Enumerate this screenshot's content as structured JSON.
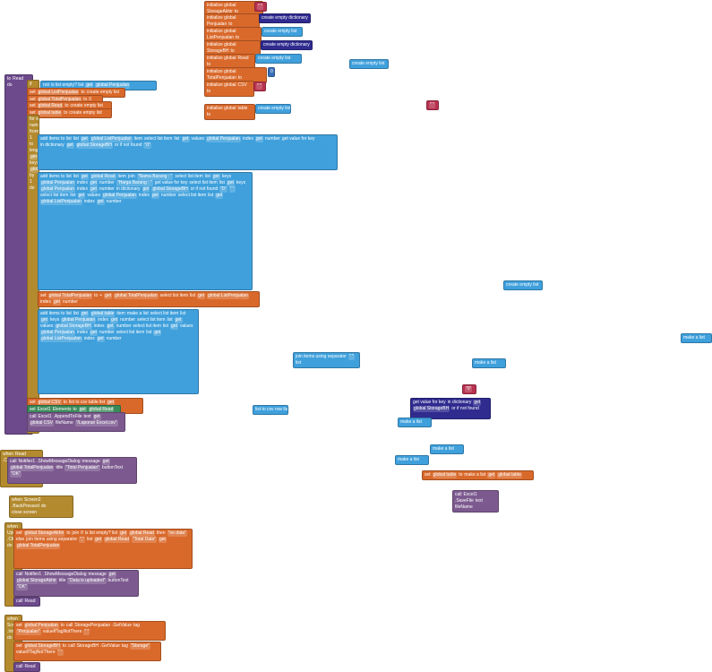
{
  "blocks": [
    {
      "texts": [
        "to",
        "Read",
        "do"
      ]
    },
    {
      "texts": [
        "if",
        "then"
      ]
    },
    {
      "texts": [
        "not",
        "is list empty? list",
        "get",
        "global Penjualan"
      ]
    },
    {
      "texts": [
        "set",
        "global ListPenjualan",
        "to",
        "create empty list"
      ]
    },
    {
      "texts": [
        "set",
        "global TotalPenjualan",
        "to",
        "0"
      ]
    },
    {
      "texts": [
        "set",
        "global Read",
        "to",
        "create empty list"
      ]
    },
    {
      "texts": [
        "set",
        "global table",
        "to",
        "create empty list"
      ]
    },
    {
      "texts": [
        "for each",
        "number",
        "from",
        "1",
        "to",
        "length of list list",
        "get",
        "keys",
        "global Penjualan",
        "by",
        "1",
        "do"
      ]
    },
    {
      "texts": [
        "add items to list",
        "list",
        "get",
        "global ListPenjualan",
        "item",
        "select list item",
        "list",
        "get",
        "values",
        "global Penjualan",
        "index",
        "get",
        "number",
        "get value for key",
        "in dictionary",
        "get",
        "global StorageBH",
        "or if not found",
        "\"0\""
      ]
    },
    {
      "texts": [
        "add items to list",
        "list",
        "get",
        "global Read",
        "item",
        "join",
        "\"Nama Barang : \"",
        "select list item",
        "list",
        "get",
        "keys",
        "global Penjualan",
        "index",
        "get",
        "number",
        "\"Harga Barang : \"",
        "get value for key",
        "select list item",
        "list",
        "get",
        "keys",
        "global Penjualan",
        "index",
        "get",
        "number",
        "in dictionary",
        "get",
        "global StorageBH",
        "or if not found",
        "\"0\"",
        "\" \"",
        "select list item",
        "list",
        "get",
        "values",
        "global Penjualan",
        "index",
        "get",
        "number",
        "select list item",
        "list",
        "get",
        "global ListPenjualan",
        "index",
        "get",
        "number"
      ]
    },
    {
      "texts": [
        "set",
        "global TotalPenjualan",
        "to",
        "+",
        "get",
        "global TotalPenjualan",
        "select list item",
        "list",
        "get",
        "global ListPenjualan",
        "index",
        "get",
        "number"
      ]
    },
    {
      "texts": [
        "add items to list",
        "list",
        "get",
        "global table",
        "item",
        "make a list",
        "select list item",
        "list",
        "get",
        "keys",
        "global Penjualan",
        "index",
        "get",
        "number",
        "select list item",
        "list",
        "get",
        "values",
        "global StorageBH",
        "index",
        "get",
        "number",
        "select list item",
        "list",
        "get",
        "values",
        "global Penjualan",
        "index",
        "get",
        "number",
        "select list item",
        "list",
        "get",
        "global ListPenjualan",
        "index",
        "get",
        "number"
      ]
    },
    {
      "texts": [
        "set",
        "global CSV",
        "to",
        "list to csv table list",
        "get",
        "global table"
      ]
    },
    {
      "texts": [
        "set",
        "Excel1",
        "Elements",
        "to",
        "get",
        "global Read"
      ]
    },
    {
      "texts": [
        "call",
        "Excel1",
        ".AppendToFile",
        "text",
        "get",
        "global CSV",
        "fileName",
        "\"/Laporan Excel.csv\""
      ]
    },
    {
      "texts": [
        "initialize global",
        "StorageAkhir",
        "to"
      ]
    },
    {
      "texts": [
        "\" \""
      ]
    },
    {
      "texts": [
        "initialize global",
        "Penjualan",
        "to"
      ]
    },
    {
      "texts": [
        "create empty dictionary"
      ]
    },
    {
      "texts": [
        "initialize global",
        "ListPenjualan",
        "to"
      ]
    },
    {
      "texts": [
        "create empty list"
      ]
    },
    {
      "texts": [
        "initialize global",
        "StorageBH",
        "to"
      ]
    },
    {
      "texts": [
        "create empty dictionary"
      ]
    },
    {
      "texts": [
        "initialize global",
        "Read",
        "to"
      ]
    },
    {
      "texts": [
        "create empty list"
      ]
    },
    {
      "texts": [
        "initialize global",
        "TotalPenjualan",
        "to"
      ]
    },
    {
      "texts": [
        "0"
      ]
    },
    {
      "texts": [
        "initialize global",
        "CSV",
        "to"
      ]
    },
    {
      "texts": [
        "\" \""
      ]
    },
    {
      "texts": [
        "initialize global",
        "table",
        "to"
      ]
    },
    {
      "texts": [
        "create empty list"
      ]
    },
    {
      "texts": [
        "create empty list"
      ]
    },
    {
      "texts": [
        "\" \""
      ]
    },
    {
      "texts": [
        "create empty list"
      ]
    },
    {
      "texts": [
        "make a list"
      ]
    },
    {
      "texts": [
        "join items using separator",
        "\" \"",
        "list"
      ]
    },
    {
      "texts": [
        "make a list"
      ]
    },
    {
      "texts": [
        "\"0\""
      ]
    },
    {
      "texts": [
        "list to csv row list"
      ]
    },
    {
      "texts": [
        "get value for key",
        "in dictionary",
        "get",
        "global StorageBH",
        "or if not found"
      ]
    },
    {
      "texts": [
        "make a list"
      ]
    },
    {
      "texts": [
        "make a list"
      ]
    },
    {
      "texts": [
        "make a list"
      ]
    },
    {
      "texts": [
        "set",
        "global table",
        "to",
        "make a list",
        "get",
        "global table"
      ]
    },
    {
      "texts": [
        "call",
        "Excel1",
        ".SaveFile",
        "text",
        "fileName"
      ]
    },
    {
      "texts": [
        "when",
        "Read",
        ".Click",
        "do"
      ]
    },
    {
      "texts": [
        "call",
        "Notifier1",
        ".ShowMessageDialog",
        "message",
        "get",
        "global TotalPenjualan",
        "title",
        "\"Total Penjualan\"",
        "buttonText",
        "\"OK\""
      ]
    },
    {
      "texts": [
        "when",
        "Screen2",
        ".BackPressed",
        "do",
        "close screen"
      ]
    },
    {
      "texts": [
        "when",
        "Upload",
        ".Click",
        "do"
      ]
    },
    {
      "texts": [
        "set",
        "global StorageAkhir",
        "to",
        "join",
        "if",
        "is list empty? list",
        "get",
        "global Read",
        "then",
        "\"no data\"",
        "else",
        "join items using separator",
        "\",\"",
        "list",
        "get",
        "global Read",
        "\"Total Data\"",
        "get",
        "global TotalPenjualan"
      ]
    },
    {
      "texts": [
        "call",
        "Notifier1",
        ".ShowMessageDialog",
        "message",
        "get",
        "global StorageAkhir",
        "title",
        "\"Data is uploaded\"",
        "buttonText",
        "\"OK\""
      ]
    },
    {
      "texts": [
        "call",
        "Read"
      ]
    },
    {
      "texts": [
        "when",
        "Screen2",
        ".Initialize",
        "do"
      ]
    },
    {
      "texts": [
        "set",
        "global Penjualan",
        "to",
        "call",
        "StoragePenjualan",
        ".GetValue",
        "tag",
        "\"Penjualan\"",
        "valueIfTagNotThere",
        "\" \""
      ]
    },
    {
      "texts": [
        "set",
        "global StorageBH",
        "to",
        "call",
        "StorageBH",
        ".GetValue",
        "tag",
        "\"Storage\"",
        "valueIfTagNotThere",
        "\" \""
      ]
    },
    {
      "texts": [
        "call",
        "Read"
      ]
    }
  ]
}
